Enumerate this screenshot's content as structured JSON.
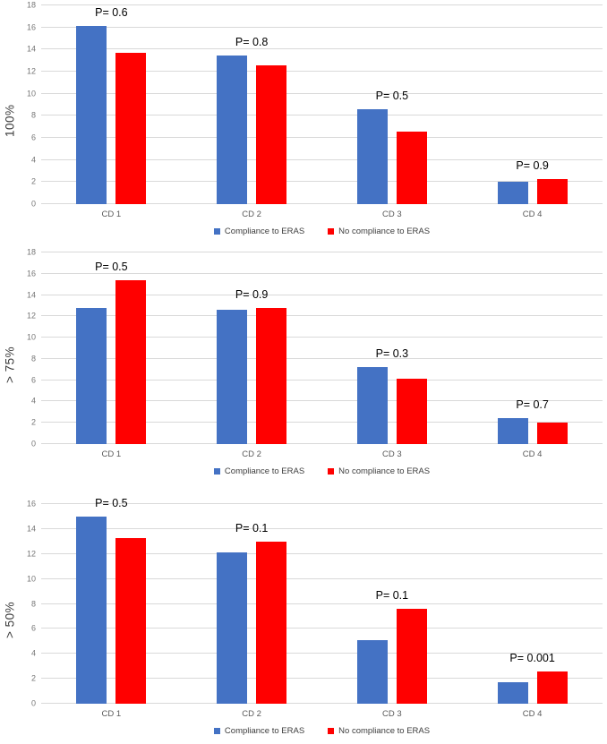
{
  "colors": {
    "compliance_blue": "#4472C4",
    "no_compliance_red": "#FF0000",
    "gridline_gray": "#D9D9D9",
    "tick_text_gray": "#767676",
    "category_text_gray": "#595959",
    "p_label_black": "#000000"
  },
  "chart_data": [
    {
      "type": "bar",
      "title": "",
      "ylabel": "100%",
      "xlabel": "",
      "categories": [
        "CD 1",
        "CD 2",
        "CD 3",
        "CD 4"
      ],
      "series": [
        {
          "name": "Compliance to ERAS",
          "color": "#4472C4",
          "values": [
            16.1,
            13.5,
            8.6,
            2.0
          ]
        },
        {
          "name": "No compliance to ERAS",
          "color": "#FF0000",
          "values": [
            13.7,
            12.6,
            6.6,
            2.3
          ]
        }
      ],
      "p_values": [
        "P= 0.6",
        "P= 0.8",
        "P= 0.5",
        "P= 0.9"
      ],
      "ylim": [
        0,
        18
      ],
      "ytick_step": 2,
      "grid": true,
      "legend_position": "bottom"
    },
    {
      "type": "bar",
      "title": "",
      "ylabel": "> 75%",
      "xlabel": "",
      "categories": [
        "CD 1",
        "CD 2",
        "CD 3",
        "CD 4"
      ],
      "series": [
        {
          "name": "Compliance to ERAS",
          "color": "#4472C4",
          "values": [
            12.8,
            12.6,
            7.2,
            2.4
          ]
        },
        {
          "name": "No compliance to ERAS",
          "color": "#FF0000",
          "values": [
            15.4,
            12.8,
            6.1,
            2.0
          ]
        }
      ],
      "p_values": [
        "P= 0.5",
        "P= 0.9",
        "P= 0.3",
        "P= 0.7"
      ],
      "ylim": [
        0,
        18
      ],
      "ytick_step": 2,
      "grid": true,
      "legend_position": "bottom"
    },
    {
      "type": "bar",
      "title": "",
      "ylabel": "> 50%",
      "xlabel": "",
      "categories": [
        "CD 1",
        "CD 2",
        "CD 3",
        "CD 4"
      ],
      "series": [
        {
          "name": "Compliance to ERAS",
          "color": "#4472C4",
          "values": [
            15.0,
            12.1,
            5.1,
            1.7
          ]
        },
        {
          "name": "No compliance to ERAS",
          "color": "#FF0000",
          "values": [
            13.3,
            13.0,
            7.6,
            2.6
          ]
        }
      ],
      "p_values": [
        "P= 0.5",
        "P= 0.1",
        "P= 0.1",
        "P= 0.001"
      ],
      "ylim": [
        0,
        16
      ],
      "ytick_step": 2,
      "grid": true,
      "legend_position": "bottom"
    }
  ]
}
